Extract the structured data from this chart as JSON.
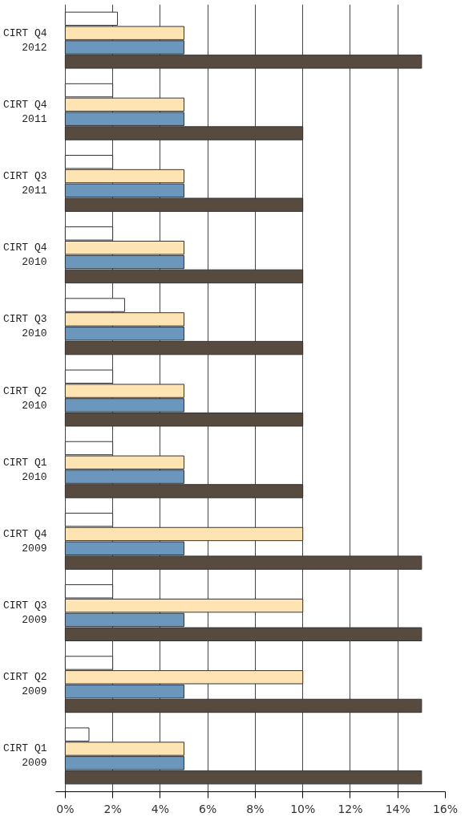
{
  "chart_data": {
    "type": "bar",
    "orientation": "horizontal",
    "categories": [
      "CIRT Q4\n2012",
      "CIRT Q4\n2011",
      "CIRT Q3\n2011",
      "CIRT Q4\n2010",
      "CIRT Q3\n2010",
      "CIRT Q2\n2010",
      "CIRT Q1\n2010",
      "CIRT Q4\n2009",
      "CIRT Q3\n2009",
      "CIRT Q2\n2009",
      "CIRT Q1\n2009"
    ],
    "series": [
      {
        "color": "#ffffff",
        "values": [
          2.2,
          2,
          2,
          2,
          2.5,
          2,
          2,
          2,
          2,
          2,
          1
        ]
      },
      {
        "color": "#fee3b3",
        "values": [
          5,
          5,
          5,
          5,
          5,
          5,
          5,
          10,
          10,
          10,
          5
        ]
      },
      {
        "color": "#6a97bb",
        "values": [
          5,
          5,
          5,
          5,
          5,
          5,
          5,
          5,
          5,
          5,
          5
        ]
      },
      {
        "color": "#574a3f",
        "values": [
          15,
          10,
          10,
          10,
          10,
          10,
          10,
          15,
          15,
          15,
          15
        ]
      }
    ],
    "xlim": [
      -0.4,
      16
    ],
    "xticks": [
      {
        "value": 0,
        "label": "0%"
      },
      {
        "value": 2,
        "label": "2%"
      },
      {
        "value": 4,
        "label": "4%"
      },
      {
        "value": 6,
        "label": "6%"
      },
      {
        "value": 8,
        "label": "8%"
      },
      {
        "value": 10,
        "label": "10%"
      },
      {
        "value": 12,
        "label": "12%"
      },
      {
        "value": 14,
        "label": "14%"
      },
      {
        "value": 16,
        "label": "16%"
      }
    ],
    "grid": "x"
  }
}
